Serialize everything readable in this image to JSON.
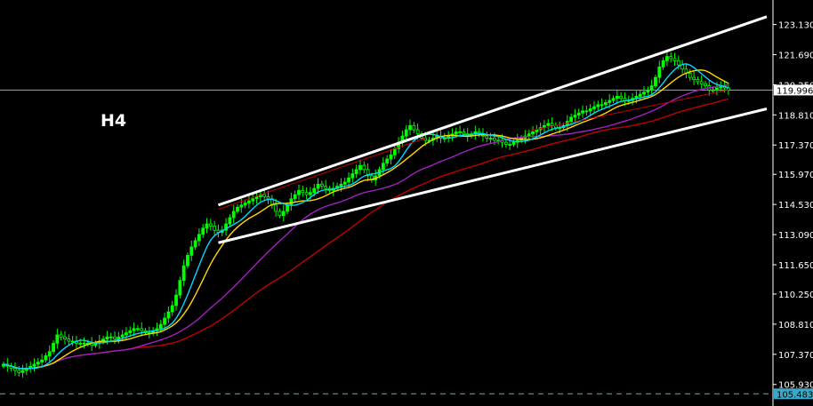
{
  "chart_data": {
    "type": "candlestick",
    "timeframe": "H4",
    "ylim": [
      104.9,
      124.3
    ],
    "y_ticks": [
      "123.130",
      "121.690",
      "120.250",
      "118.810",
      "117.370",
      "115.970",
      "114.530",
      "113.090",
      "111.650",
      "110.250",
      "108.810",
      "107.370",
      "105.930"
    ],
    "current_price": "119.996",
    "reference_level": "105.483",
    "bar_count": 200,
    "close": [
      106.9,
      106.8,
      106.7,
      106.6,
      106.5,
      106.6,
      106.7,
      106.8,
      106.9,
      107.0,
      107.1,
      107.3,
      107.5,
      107.9,
      108.3,
      108.2,
      108.1,
      108.0,
      108.0,
      107.9,
      107.9,
      107.9,
      107.9,
      107.8,
      107.9,
      108.0,
      108.1,
      108.2,
      108.2,
      108.1,
      108.2,
      108.3,
      108.4,
      108.5,
      108.6,
      108.6,
      108.5,
      108.4,
      108.4,
      108.5,
      108.6,
      108.8,
      109.1,
      109.4,
      109.7,
      110.2,
      110.9,
      111.6,
      112.1,
      112.5,
      112.8,
      113.1,
      113.4,
      113.6,
      113.5,
      113.3,
      113.2,
      113.3,
      113.6,
      113.9,
      114.2,
      114.4,
      114.5,
      114.6,
      114.7,
      114.8,
      114.9,
      115.0,
      114.9,
      114.8,
      114.5,
      114.2,
      114.0,
      114.2,
      114.5,
      114.8,
      115.0,
      115.2,
      115.1,
      115.0,
      115.1,
      115.3,
      115.5,
      115.4,
      115.3,
      115.2,
      115.3,
      115.4,
      115.5,
      115.6,
      115.8,
      116.0,
      116.2,
      116.4,
      116.2,
      115.9,
      115.7,
      115.9,
      116.2,
      116.5,
      116.7,
      116.9,
      117.2,
      117.5,
      117.8,
      118.1,
      118.3,
      118.1,
      117.9,
      117.7,
      117.6,
      117.6,
      117.7,
      117.8,
      117.7,
      117.7,
      117.8,
      117.9,
      118.0,
      118.0,
      117.9,
      117.8,
      117.9,
      118.0,
      117.9,
      117.8,
      117.7,
      117.7,
      117.6,
      117.6,
      117.5,
      117.4,
      117.4,
      117.5,
      117.6,
      117.7,
      117.8,
      117.9,
      118.0,
      118.1,
      118.2,
      118.3,
      118.4,
      118.3,
      118.2,
      118.2,
      118.3,
      118.5,
      118.7,
      118.8,
      118.9,
      119.0,
      119.0,
      119.1,
      119.2,
      119.3,
      119.3,
      119.4,
      119.5,
      119.6,
      119.7,
      119.6,
      119.5,
      119.5,
      119.6,
      119.7,
      119.8,
      119.9,
      120.0,
      120.2,
      120.6,
      121.1,
      121.4,
      121.6,
      121.5,
      121.4,
      121.2,
      121.0,
      120.8,
      120.6,
      120.5,
      120.4,
      120.3,
      120.2,
      120.0,
      120.0,
      120.1,
      120.2,
      120.1,
      119.996
    ],
    "series": [
      {
        "type": "sma",
        "period": 8,
        "color": "#00d8ff"
      },
      {
        "type": "sma",
        "period": 13,
        "color": "#ffd700"
      },
      {
        "type": "sma",
        "period": 34,
        "color": "#a020c0"
      },
      {
        "type": "sma",
        "period": 55,
        "color": "#c00000"
      }
    ],
    "trendlines": [
      {
        "from": [
          56,
          114.5
        ],
        "to": [
          199,
          123.5
        ],
        "color": "#ffffff"
      },
      {
        "from": [
          56,
          112.7
        ],
        "to": [
          199,
          119.1
        ],
        "color": "#ffffff"
      },
      {
        "from": [
          56,
          114.3
        ],
        "to": [
          110,
          117.7
        ],
        "color": "#c00000"
      },
      {
        "from": [
          136,
          118.0
        ],
        "to": [
          189,
          120.0
        ],
        "color": "#c00000"
      }
    ],
    "colors": {
      "background": "#000000",
      "candle": "#00ff00",
      "axis": "#ffffff",
      "price_line": "#8fa6c8",
      "reference_line": "#5aa8c8",
      "price_box": "#ffffff",
      "reference_box": "#3aa8c8"
    }
  }
}
